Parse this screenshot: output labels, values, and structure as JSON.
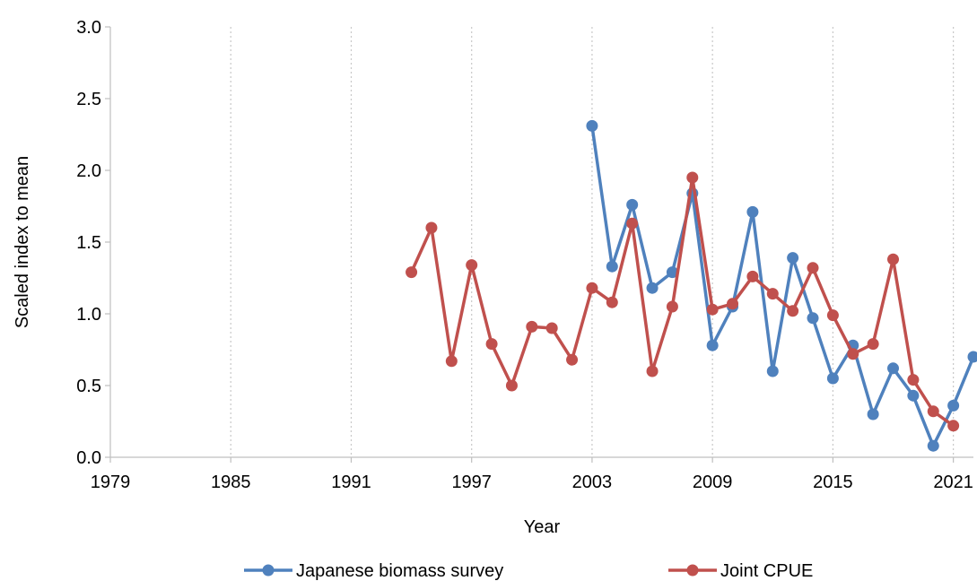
{
  "chart_data": {
    "type": "line",
    "xlabel": "Year",
    "ylabel": "Scaled index to mean",
    "xlim": [
      1979,
      2022
    ],
    "ylim": [
      0,
      3.0
    ],
    "x_ticks": [
      1979,
      1985,
      1991,
      1997,
      2003,
      2009,
      2015,
      2021
    ],
    "y_ticks": [
      "0.0",
      "0.5",
      "1.0",
      "1.5",
      "2.0",
      "2.5",
      "3.0"
    ],
    "grid": "vertical-dotted",
    "legend_position": "bottom",
    "series": [
      {
        "name": "Japanese biomass survey",
        "color": "#4f81bd",
        "x": [
          2003,
          2004,
          2005,
          2006,
          2007,
          2008,
          2009,
          2010,
          2011,
          2012,
          2013,
          2014,
          2015,
          2016,
          2017,
          2018,
          2019,
          2020,
          2021,
          2022
        ],
        "y": [
          2.31,
          1.33,
          1.76,
          1.18,
          1.29,
          1.84,
          0.78,
          1.05,
          1.71,
          0.6,
          1.39,
          0.97,
          0.55,
          0.78,
          0.3,
          0.62,
          0.43,
          0.08,
          0.36,
          0.7
        ]
      },
      {
        "name": "Joint CPUE",
        "color": "#c0504d",
        "x": [
          1994,
          1995,
          1996,
          1997,
          1998,
          1999,
          2000,
          2001,
          2002,
          2003,
          2004,
          2005,
          2006,
          2007,
          2008,
          2009,
          2010,
          2011,
          2012,
          2013,
          2014,
          2015,
          2016,
          2017,
          2018,
          2019,
          2020,
          2021
        ],
        "y": [
          1.29,
          1.6,
          0.67,
          1.34,
          0.79,
          0.5,
          0.91,
          0.9,
          0.68,
          1.18,
          1.08,
          1.63,
          0.6,
          1.05,
          1.95,
          1.03,
          1.07,
          1.26,
          1.14,
          1.02,
          1.32,
          0.99,
          0.72,
          0.79,
          1.38,
          0.54,
          0.32,
          0.22
        ]
      }
    ]
  }
}
